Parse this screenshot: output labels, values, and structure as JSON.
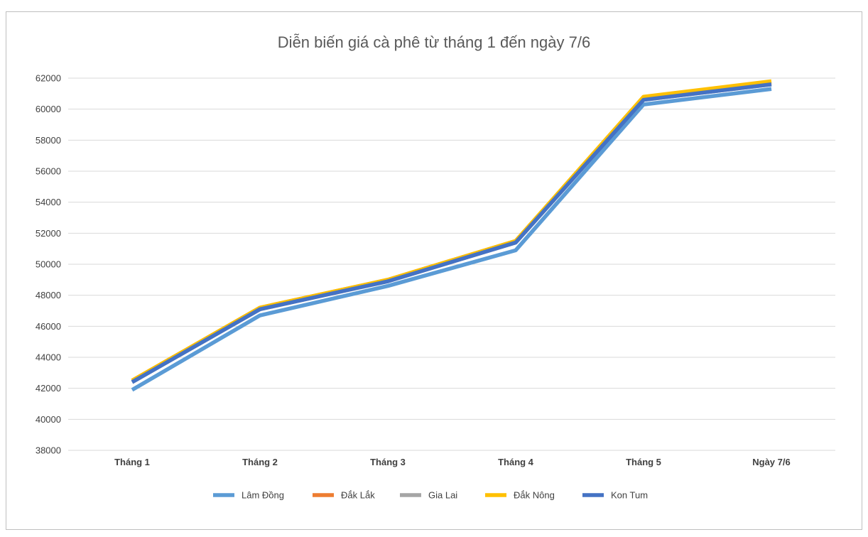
{
  "chart_data": {
    "type": "line",
    "title": "Diễn biến giá cà phê từ tháng 1 đến ngày 7/6",
    "xlabel": "",
    "ylabel": "",
    "categories": [
      "Tháng 1",
      "Tháng 2",
      "Tháng 3",
      "Tháng 4",
      "Tháng 5",
      "Ngày 7/6"
    ],
    "ylim": [
      38000,
      62000
    ],
    "yticks": [
      38000,
      40000,
      42000,
      44000,
      46000,
      48000,
      50000,
      52000,
      54000,
      56000,
      58000,
      60000,
      62000
    ],
    "grid": true,
    "legend_position": "bottom",
    "series": [
      {
        "name": "Lâm Đồng",
        "color": "#5b9bd5",
        "values": [
          41900,
          46700,
          48600,
          50900,
          60300,
          61300
        ]
      },
      {
        "name": "Đắk Lắk",
        "color": "#ed7d31",
        "values": [
          42500,
          47200,
          49000,
          51500,
          60700,
          61700
        ]
      },
      {
        "name": "Gia Lai",
        "color": "#a5a5a5",
        "values": [
          42400,
          47100,
          48900,
          51400,
          60600,
          61600
        ]
      },
      {
        "name": "Đắk Nông",
        "color": "#ffc000",
        "values": [
          42500,
          47200,
          49000,
          51500,
          60800,
          61800
        ]
      },
      {
        "name": "Kon Tum",
        "color": "#4472c4",
        "values": [
          42400,
          47100,
          48900,
          51400,
          60600,
          61600
        ]
      }
    ]
  }
}
